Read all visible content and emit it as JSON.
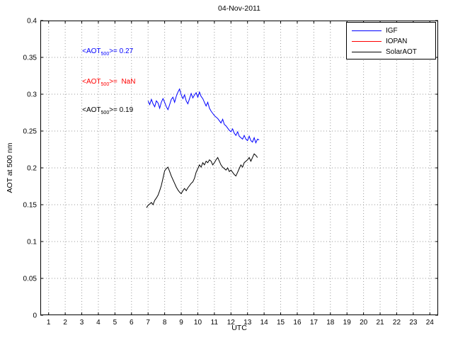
{
  "figure": {
    "title": "04-Nov-2011",
    "xlabel": "UTC",
    "ylabel": "AOT at 500 nm"
  },
  "legend": {
    "entries": [
      {
        "label": "IGF",
        "color": "#0000ff"
      },
      {
        "label": "IOPAN",
        "color": "#ff0000"
      },
      {
        "label": "SolarAOT",
        "color": "#000000"
      }
    ]
  },
  "annotations": [
    {
      "prefix": "<AOT",
      "sub": "500",
      "suffix": ">= 0.27",
      "color": "#0000ff"
    },
    {
      "prefix": "<AOT",
      "sub": "500",
      "suffix": ">=  NaN",
      "color": "#ff0000"
    },
    {
      "prefix": "<AOT",
      "sub": "500",
      "suffix": ">= 0.19",
      "color": "#000000"
    }
  ],
  "chart_data": {
    "type": "line",
    "title": "04-Nov-2011",
    "xlabel": "UTC",
    "ylabel": "AOT at 500 nm",
    "xlim": [
      0.5,
      24.5
    ],
    "ylim": [
      0,
      0.4
    ],
    "xticks": [
      1,
      2,
      3,
      4,
      5,
      6,
      7,
      8,
      9,
      10,
      11,
      12,
      13,
      14,
      15,
      16,
      17,
      18,
      19,
      20,
      21,
      22,
      23,
      24
    ],
    "yticks": [
      0,
      0.05,
      0.1,
      0.15,
      0.2,
      0.25,
      0.3,
      0.35,
      0.4
    ],
    "ytick_labels": [
      "0",
      "0.05",
      "0.1",
      "0.15",
      "0.2",
      "0.25",
      "0.3",
      "0.35",
      "0.4"
    ],
    "grid": true,
    "legend_position": "top-right",
    "series": [
      {
        "name": "IGF",
        "color": "#0000ff",
        "mean_aot500": 0.27,
        "x": [
          7.0,
          7.1,
          7.2,
          7.3,
          7.4,
          7.5,
          7.6,
          7.7,
          7.8,
          7.9,
          8.0,
          8.1,
          8.2,
          8.3,
          8.4,
          8.5,
          8.6,
          8.7,
          8.8,
          8.9,
          9.0,
          9.1,
          9.2,
          9.3,
          9.4,
          9.5,
          9.6,
          9.7,
          9.8,
          9.9,
          10.0,
          10.1,
          10.2,
          10.3,
          10.4,
          10.5,
          10.6,
          10.7,
          10.8,
          10.9,
          11.0,
          11.1,
          11.2,
          11.3,
          11.4,
          11.5,
          11.6,
          11.7,
          11.8,
          11.9,
          12.0,
          12.1,
          12.2,
          12.3,
          12.4,
          12.5,
          12.6,
          12.7,
          12.8,
          12.9,
          13.0,
          13.1,
          13.2,
          13.3,
          13.4,
          13.5,
          13.6,
          13.7
        ],
        "y": [
          0.291,
          0.286,
          0.293,
          0.287,
          0.283,
          0.291,
          0.288,
          0.281,
          0.289,
          0.294,
          0.289,
          0.283,
          0.279,
          0.286,
          0.293,
          0.296,
          0.289,
          0.297,
          0.303,
          0.307,
          0.299,
          0.294,
          0.299,
          0.291,
          0.287,
          0.294,
          0.301,
          0.295,
          0.299,
          0.302,
          0.296,
          0.303,
          0.297,
          0.294,
          0.289,
          0.284,
          0.289,
          0.281,
          0.277,
          0.274,
          0.271,
          0.269,
          0.267,
          0.264,
          0.261,
          0.266,
          0.259,
          0.257,
          0.254,
          0.251,
          0.249,
          0.253,
          0.247,
          0.244,
          0.249,
          0.243,
          0.241,
          0.239,
          0.244,
          0.239,
          0.237,
          0.243,
          0.237,
          0.235,
          0.241,
          0.234,
          0.239,
          0.238
        ]
      },
      {
        "name": "IOPAN",
        "color": "#ff0000",
        "mean_aot500": "NaN",
        "x": [],
        "y": []
      },
      {
        "name": "SolarAOT",
        "color": "#000000",
        "mean_aot500": 0.19,
        "x": [
          6.9,
          7.0,
          7.1,
          7.2,
          7.3,
          7.4,
          7.5,
          7.6,
          7.7,
          7.8,
          7.9,
          8.0,
          8.1,
          8.2,
          8.3,
          8.4,
          8.5,
          8.6,
          8.7,
          8.8,
          8.9,
          9.0,
          9.1,
          9.2,
          9.3,
          9.4,
          9.5,
          9.6,
          9.7,
          9.8,
          9.9,
          10.0,
          10.1,
          10.2,
          10.3,
          10.4,
          10.5,
          10.6,
          10.7,
          10.8,
          10.9,
          11.0,
          11.1,
          11.2,
          11.3,
          11.4,
          11.5,
          11.6,
          11.7,
          11.8,
          11.9,
          12.0,
          12.1,
          12.2,
          12.3,
          12.4,
          12.5,
          12.6,
          12.7,
          12.8,
          12.9,
          13.0,
          13.1,
          13.2,
          13.3,
          13.4,
          13.5,
          13.6
        ],
        "y": [
          0.146,
          0.149,
          0.151,
          0.153,
          0.15,
          0.156,
          0.159,
          0.163,
          0.169,
          0.176,
          0.186,
          0.196,
          0.199,
          0.201,
          0.195,
          0.189,
          0.184,
          0.179,
          0.174,
          0.17,
          0.167,
          0.165,
          0.169,
          0.172,
          0.169,
          0.173,
          0.176,
          0.179,
          0.181,
          0.186,
          0.194,
          0.199,
          0.204,
          0.201,
          0.207,
          0.204,
          0.209,
          0.207,
          0.211,
          0.209,
          0.204,
          0.207,
          0.211,
          0.214,
          0.209,
          0.204,
          0.201,
          0.199,
          0.197,
          0.2,
          0.195,
          0.197,
          0.194,
          0.191,
          0.189,
          0.194,
          0.199,
          0.204,
          0.201,
          0.207,
          0.209,
          0.211,
          0.214,
          0.209,
          0.214,
          0.219,
          0.217,
          0.214
        ]
      }
    ]
  }
}
